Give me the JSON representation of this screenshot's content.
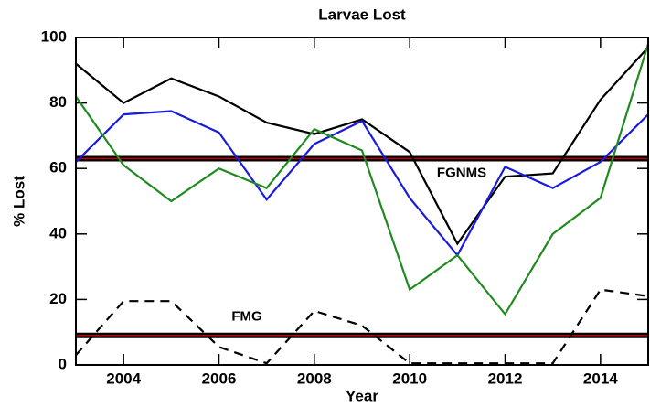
{
  "chart_data": {
    "type": "line",
    "title": "Larvae Lost",
    "x_label": "Year",
    "y_label": "% Lost",
    "x": [
      2003,
      2004,
      2005,
      2006,
      2007,
      2008,
      2009,
      2010,
      2011,
      2012,
      2013,
      2014,
      2015
    ],
    "xlim": [
      2003,
      2015
    ],
    "xticks": [
      2004,
      2006,
      2008,
      2010,
      2012,
      2014
    ],
    "ylim": [
      0,
      100
    ],
    "yticks": [
      0,
      20,
      40,
      60,
      80,
      100
    ],
    "series": [
      {
        "color": "#000000",
        "dashed": false,
        "values": [
          92,
          80,
          87.5,
          82,
          74,
          70.5,
          75,
          65,
          37,
          57.5,
          58.5,
          81,
          97
        ]
      },
      {
        "color": "#1a1adc",
        "dashed": false,
        "values": [
          62,
          76.5,
          77.5,
          71,
          50.5,
          67.5,
          74.5,
          51,
          33.5,
          60.5,
          54,
          62,
          76.5
        ]
      },
      {
        "color": "#1f8a1f",
        "dashed": false,
        "values": [
          82,
          61,
          50,
          60,
          54,
          72,
          65.5,
          23,
          33.5,
          15.5,
          40,
          51,
          98
        ]
      },
      {
        "color": "#000000",
        "dashed": true,
        "values": [
          3,
          19.5,
          19.5,
          5.5,
          0.5,
          16.5,
          12,
          0.5,
          0.5,
          0.5,
          0.5,
          23,
          21
        ]
      }
    ],
    "reference_lines": [
      {
        "value": 63,
        "label": "FGNMS"
      },
      {
        "value": 9,
        "label": "FMG"
      }
    ]
  }
}
